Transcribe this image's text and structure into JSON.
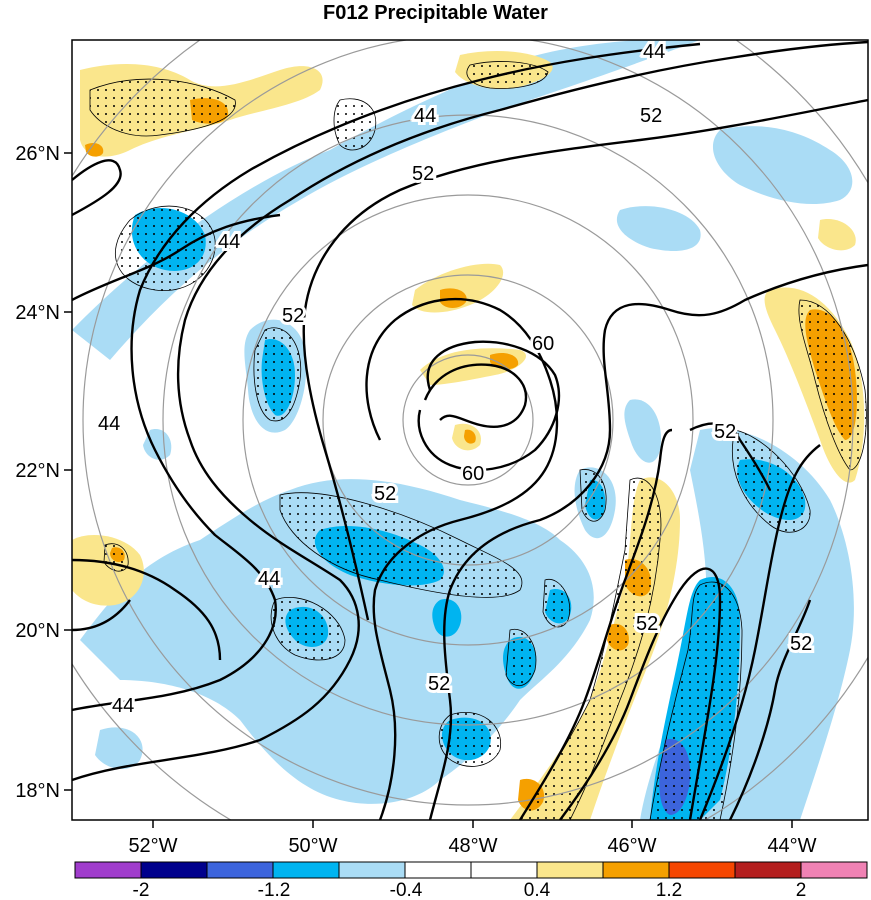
{
  "title": "F012 Precipitable Water",
  "axes": {
    "lon_ticks": [
      "52°W",
      "50°W",
      "48°W",
      "46°W",
      "44°W"
    ],
    "lat_ticks": [
      "26°N",
      "24°N",
      "22°N",
      "20°N",
      "18°N"
    ]
  },
  "contour_labels": [
    "44",
    "44",
    "44",
    "44",
    "44",
    "44",
    "52",
    "52",
    "52",
    "52",
    "52",
    "52",
    "52",
    "52",
    "60",
    "60"
  ],
  "colorbar": {
    "colors": [
      "#a03ccc",
      "#00008c",
      "#3c64dc",
      "#00b4f0",
      "#aadcf5",
      "#ffffff",
      "#ffffff",
      "#fae68c",
      "#f5a000",
      "#f54600",
      "#b41e1e",
      "#f082b4"
    ],
    "labels": [
      "-2",
      "-1.2",
      "-0.4",
      "0.4",
      "1.2",
      "2"
    ]
  },
  "colors": {
    "neg_light": "#aadcf5",
    "neg_mid": "#00b4f0",
    "neg_dark": "#3c64dc",
    "neg_darkest": "#00008c",
    "pos_light": "#fae68c",
    "pos_mid": "#f5a000",
    "pos_strong": "#f54600"
  }
}
